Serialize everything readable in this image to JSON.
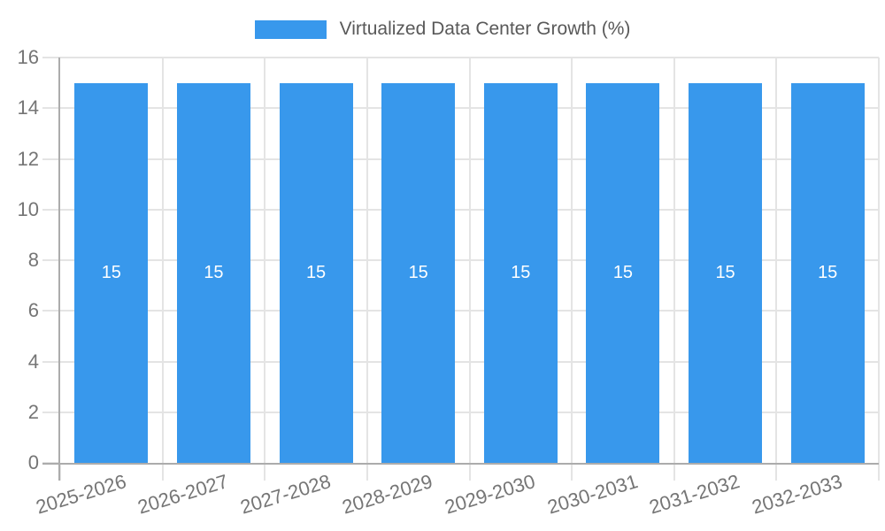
{
  "colors": {
    "bar": "#3898EC",
    "grid": "#E4E4E4",
    "axis": "#ACACAC",
    "tick_label": "#757575",
    "title_text": "#595959",
    "bar_label": "#FFFFFF",
    "background": "#FFFFFF"
  },
  "chart_data": {
    "type": "bar",
    "title": "Virtualized Data Center Growth (%)",
    "legend_position": "top",
    "legend_entries": [
      "Virtualized Data Center Growth (%)"
    ],
    "categories": [
      "2025-2026",
      "2026-2027",
      "2027-2028",
      "2028-2029",
      "2029-2030",
      "2030-2031",
      "2031-2032",
      "2032-2033"
    ],
    "values": [
      15,
      15,
      15,
      15,
      15,
      15,
      15,
      15
    ],
    "bar_value_labels": [
      "15",
      "15",
      "15",
      "15",
      "15",
      "15",
      "15",
      "15"
    ],
    "y_ticks": [
      0,
      2,
      4,
      6,
      8,
      10,
      12,
      14,
      16
    ],
    "ylim": [
      0,
      16
    ],
    "xlabel": "",
    "ylabel": "",
    "grid": true
  }
}
